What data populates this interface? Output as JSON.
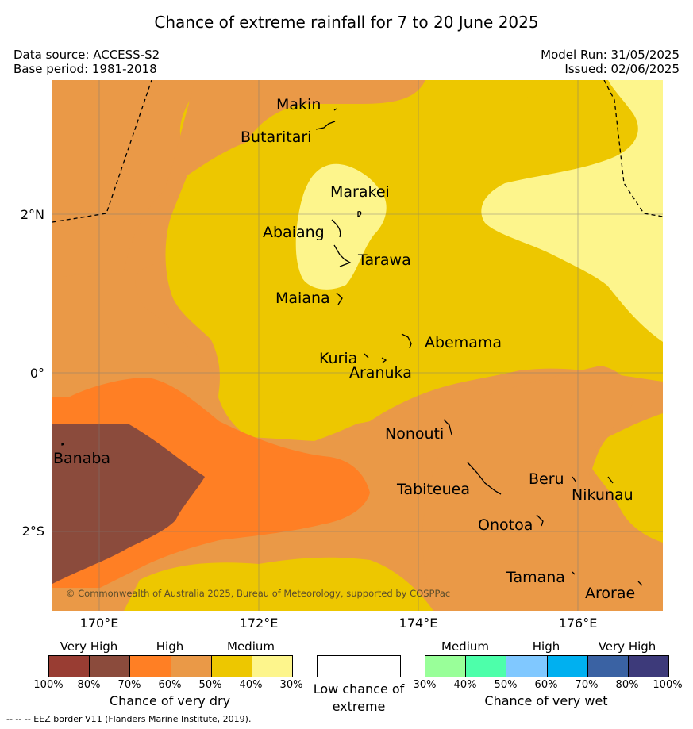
{
  "title": "Chance of extreme rainfall for 7 to 20 June 2025",
  "data_source": "Data source: ACCESS-S2",
  "base_period": "Base period: 1981-2018",
  "model_run": "Model Run: 31/05/2025",
  "issued": "Issued: 02/06/2025",
  "map": {
    "lat_ticks": [
      "2°N",
      "0°",
      "2°S"
    ],
    "lon_ticks": [
      "170°E",
      "172°E",
      "174°E",
      "176°E"
    ],
    "islands": [
      "Makin",
      "Butaritari",
      "Marakei",
      "Abaiang",
      "Tarawa",
      "Maiana",
      "Abemama",
      "Kuria",
      "Aranuka",
      "Nonouti",
      "Banaba",
      "Tabiteuea",
      "Beru",
      "Nikunau",
      "Onotoa",
      "Tamana",
      "Arorae"
    ],
    "copyright": "© Commonwealth of Australia 2025, Bureau of Meteorology, supported by COSPPac",
    "colors": {
      "dry_80_100": "#8b4b3c",
      "dry_60_70": "#ea9947",
      "dry_70_80_orange": "#ff7f24",
      "dry_50_60": "#edc700",
      "dry_30_40": "#fdf58c",
      "eez_border": "#000000"
    }
  },
  "legend": {
    "dry": {
      "headers": [
        "Very High",
        "High",
        "Medium"
      ],
      "colors": [
        "#993d33",
        "#8b4b3c",
        "#ff7f24",
        "#ea9947",
        "#edc700",
        "#fdf58c"
      ],
      "ticks": [
        "100%",
        "80%",
        "70%",
        "60%",
        "50%",
        "40%",
        "30%"
      ],
      "title": "Chance of very dry"
    },
    "low": {
      "label": "Low chance of extreme"
    },
    "wet": {
      "headers": [
        "Medium",
        "High",
        "Very High"
      ],
      "colors": [
        "#99ff99",
        "#4dffaa",
        "#80c8ff",
        "#00b0f0",
        "#3a62a3",
        "#3d3a7a"
      ],
      "ticks": [
        "30%",
        "40%",
        "50%",
        "60%",
        "70%",
        "80%",
        "100%"
      ],
      "title": "Chance of very wet"
    }
  },
  "eez_note": "--  --  -- EEZ border V11 (Flanders Marine Institute, 2019)."
}
